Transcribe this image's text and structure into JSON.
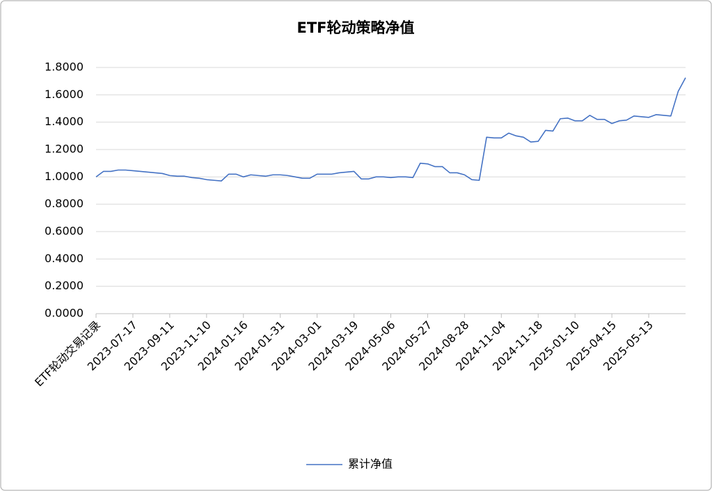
{
  "chart_data": {
    "type": "line",
    "title": "ETF轮动策略净值",
    "categories": [
      "ETF轮动交易记录",
      null,
      null,
      null,
      null,
      "2023-07-17",
      null,
      null,
      null,
      null,
      "2023-09-11",
      null,
      null,
      null,
      null,
      "2023-11-10",
      null,
      null,
      null,
      null,
      "2024-01-16",
      null,
      null,
      null,
      null,
      "2024-01-31",
      null,
      null,
      null,
      null,
      "2024-03-01",
      null,
      null,
      null,
      null,
      "2024-03-19",
      null,
      null,
      null,
      null,
      "2024-05-06",
      null,
      null,
      null,
      null,
      "2024-05-27",
      null,
      null,
      null,
      null,
      "2024-08-28",
      null,
      null,
      null,
      null,
      "2024-11-04",
      null,
      null,
      null,
      null,
      "2024-11-18",
      null,
      null,
      null,
      null,
      "2025-01-10",
      null,
      null,
      null,
      null,
      "2025-04-15",
      null,
      null,
      null,
      null,
      "2025-05-13",
      null,
      null,
      null,
      null,
      null
    ],
    "series": [
      {
        "name": "累计净值",
        "color": "#4472c4",
        "values": [
          1.0,
          1.04,
          1.04,
          1.05,
          1.05,
          1.045,
          1.04,
          1.035,
          1.03,
          1.025,
          1.01,
          1.005,
          1.005,
          0.995,
          0.99,
          0.98,
          0.975,
          0.97,
          1.02,
          1.02,
          1.0,
          1.015,
          1.01,
          1.005,
          1.015,
          1.015,
          1.01,
          1.0,
          0.99,
          0.99,
          1.02,
          1.02,
          1.02,
          1.03,
          1.035,
          1.04,
          0.985,
          0.985,
          1.0,
          1.0,
          0.995,
          1.0,
          1.0,
          0.995,
          1.1,
          1.095,
          1.075,
          1.075,
          1.03,
          1.03,
          1.015,
          0.98,
          0.975,
          1.29,
          1.285,
          1.285,
          1.32,
          1.3,
          1.29,
          1.255,
          1.26,
          1.34,
          1.335,
          1.425,
          1.43,
          1.41,
          1.41,
          1.45,
          1.42,
          1.42,
          1.39,
          1.41,
          1.415,
          1.445,
          1.44,
          1.435,
          1.455,
          1.45,
          1.445,
          1.625,
          1.725
        ]
      }
    ],
    "ylim": [
      0,
      1.8
    ],
    "yticks": [
      {
        "value": 0,
        "label": "0.0000"
      },
      {
        "value": 0.2,
        "label": "0.2000"
      },
      {
        "value": 0.4,
        "label": "0.4000"
      },
      {
        "value": 0.6,
        "label": "0.6000"
      },
      {
        "value": 0.8,
        "label": "0.8000"
      },
      {
        "value": 1.0,
        "label": "1.0000"
      },
      {
        "value": 1.2,
        "label": "1.2000"
      },
      {
        "value": 1.4,
        "label": "1.4000"
      },
      {
        "value": 1.6,
        "label": "1.6000"
      },
      {
        "value": 1.8,
        "label": "1.8000"
      }
    ],
    "grid": true,
    "legend": "bottom"
  }
}
